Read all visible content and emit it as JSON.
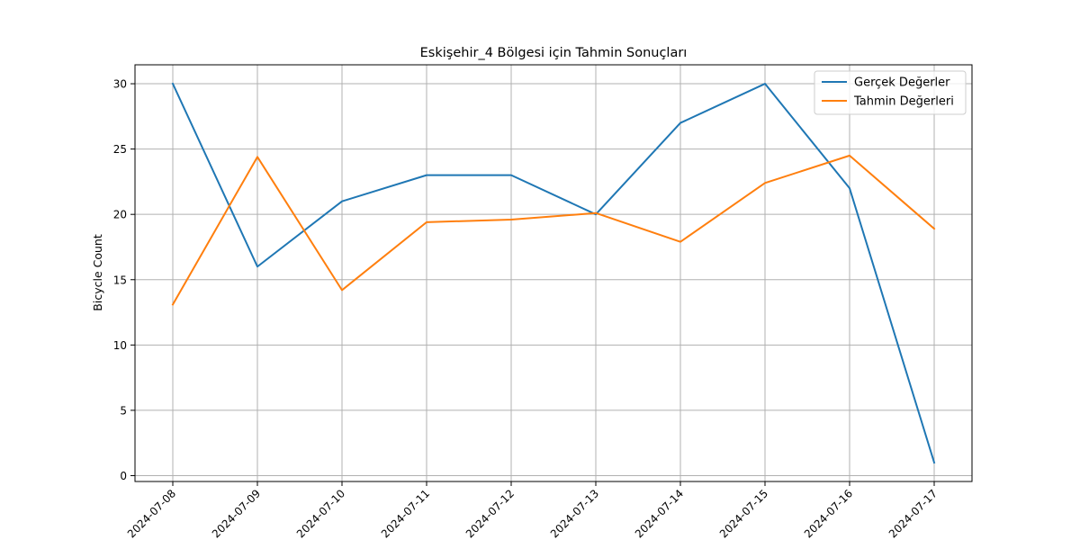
{
  "chart_data": {
    "type": "line",
    "title": "Eskişehir_4 Bölgesi için Tahmin Sonuçları",
    "xlabel": "",
    "ylabel": "Bicycle Count",
    "x": [
      "2024-07-08",
      "2024-07-09",
      "2024-07-10",
      "2024-07-11",
      "2024-07-12",
      "2024-07-13",
      "2024-07-14",
      "2024-07-15",
      "2024-07-16",
      "2024-07-17"
    ],
    "yticks": [
      0,
      5,
      10,
      15,
      20,
      25,
      30
    ],
    "ylim": [
      -0.45,
      31.45
    ],
    "grid": true,
    "legend_position": "top-right",
    "series": [
      {
        "name": "Gerçek Değerler",
        "color": "#1f77b4",
        "values": [
          30,
          16,
          21,
          23,
          23,
          20,
          27,
          30,
          22,
          1
        ]
      },
      {
        "name": "Tahmin Değerleri",
        "color": "#ff7f0e",
        "values": [
          13.1,
          24.4,
          14.2,
          19.4,
          19.6,
          20.1,
          17.9,
          22.4,
          24.5,
          18.9
        ]
      }
    ]
  }
}
